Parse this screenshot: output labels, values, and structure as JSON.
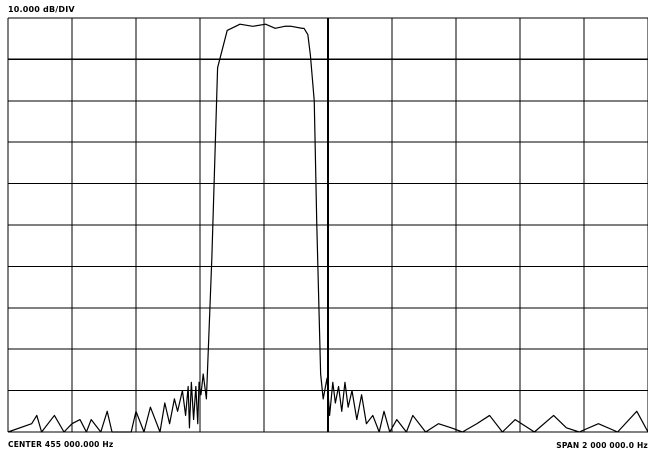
{
  "header": {
    "scale_label": "10.000 dB/DIV"
  },
  "footer": {
    "center_label": "CENTER 455 000.000 Hz",
    "span_label": "SPAN 2 000 000.0 Hz"
  },
  "chart_data": {
    "type": "line",
    "title": "",
    "xlabel": "",
    "ylabel": "",
    "x_unit": "Hz",
    "y_unit": "dB",
    "center_frequency_hz": 455000,
    "span_hz": 2000000,
    "db_per_division": 10,
    "x_divisions": 10,
    "y_divisions": 10,
    "xlim": [
      -545000,
      1455000
    ],
    "ylim": [
      -100,
      0
    ],
    "grid": true,
    "line_color": "#000000",
    "grid_color": "#000000",
    "series": [
      {
        "x": [
          -545000,
          -471000,
          -455000,
          -440000,
          -400000,
          -370000,
          -345000,
          -320000,
          -300000,
          -285000,
          -255000,
          -235000,
          -220000,
          -160000,
          -145000,
          -120000,
          -100000,
          -70000,
          -55000,
          -40000,
          -25000,
          -15000,
          0,
          10000,
          18000,
          22000,
          28000,
          35000,
          42000,
          48000,
          52000,
          58000,
          65000,
          75000,
          92000,
          110000,
          140000,
          180000,
          220000,
          260000,
          290000,
          320000,
          340000,
          375000,
          380000,
          392000,
          400000,
          412000,
          420000,
          432000,
          440000,
          452000,
          460000,
          470000,
          478000,
          488000,
          498000,
          508000,
          518000,
          530000,
          545000,
          560000,
          575000,
          595000,
          615000,
          630000,
          648000,
          670000,
          700000,
          720000,
          760000,
          800000,
          840000,
          875000,
          920000,
          960000,
          1000000,
          1040000,
          1100000,
          1160000,
          1200000,
          1240000,
          1300000,
          1360000,
          1420000,
          1455000
        ],
        "y": [
          -100,
          -98,
          -96,
          -100,
          -96,
          -100,
          -98,
          -97,
          -100,
          -97,
          -100,
          -95,
          -100,
          -100,
          -95,
          -100,
          -94,
          -100,
          -93,
          -98,
          -92,
          -95,
          -90,
          -96,
          -89,
          -99,
          -88,
          -97,
          -89,
          -98,
          -88,
          -91,
          -86,
          -92,
          -58,
          -12,
          -3,
          -1.5,
          -2,
          -1.5,
          -2.5,
          -2,
          -2,
          -2.5,
          -2.5,
          -4,
          -9,
          -20,
          -50,
          -86,
          -92,
          -87,
          -96,
          -88,
          -93,
          -89,
          -95,
          -88,
          -94,
          -90,
          -97,
          -91,
          -98,
          -96,
          -100,
          -95,
          -100,
          -97,
          -100,
          -96,
          -100,
          -98,
          -99,
          -100,
          -98,
          -96,
          -100,
          -97,
          -100,
          -96,
          -99,
          -100,
          -98,
          -100,
          -95,
          -100
        ]
      }
    ]
  }
}
